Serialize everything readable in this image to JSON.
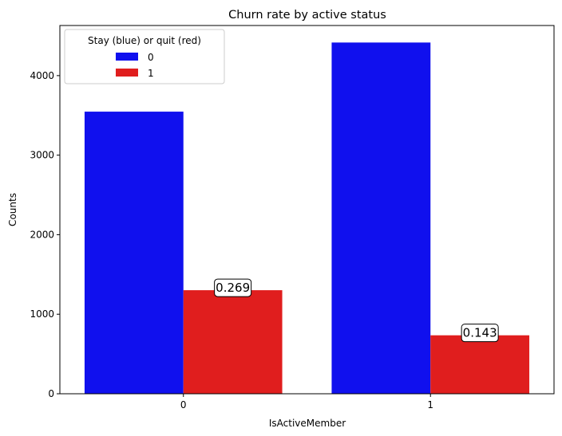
{
  "chart_data": {
    "type": "bar",
    "title": "Churn rate by active status",
    "xlabel": "IsActiveMember",
    "ylabel": "Counts",
    "categories": [
      "0",
      "1"
    ],
    "ylim": [
      0,
      4630
    ],
    "yticks": [
      0,
      1000,
      2000,
      3000,
      4000
    ],
    "grid": false,
    "legend": {
      "title": "Stay (blue) or quit (red)",
      "placement": "top-left"
    },
    "series": [
      {
        "name": "0",
        "color": "#1010ee",
        "values": [
          3547,
          4416
        ]
      },
      {
        "name": "1",
        "color": "#e01e1e",
        "values": [
          1302,
          735
        ]
      }
    ],
    "annotations": [
      {
        "series": 1,
        "category": 0,
        "text": "0.269"
      },
      {
        "series": 1,
        "category": 1,
        "text": "0.143"
      }
    ]
  }
}
